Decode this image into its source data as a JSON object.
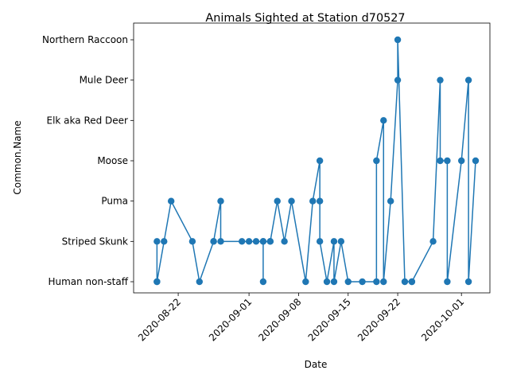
{
  "chart_data": {
    "type": "line",
    "title": "Animals Sighted at Station d70527",
    "xlabel": "Date",
    "ylabel": "Common.Name",
    "categories": [
      "Human non-staff",
      "Striped Skunk",
      "Puma",
      "Moose",
      "Elk aka Red Deer",
      "Mule Deer",
      "Northern Raccoon"
    ],
    "xticks": [
      "2020-08-22",
      "2020-09-01",
      "2020-09-08",
      "2020-09-15",
      "2020-09-22",
      "2020-10-01"
    ],
    "xlim": [
      "2020-08-16",
      "2020-10-03"
    ],
    "grid": false,
    "legend": "none",
    "color": "#1f77b4",
    "series": [
      {
        "x": [
          "2020-08-19",
          "2020-08-19",
          "2020-08-19",
          "2020-08-20",
          "2020-08-21",
          "2020-08-24",
          "2020-08-25",
          "2020-08-27",
          "2020-08-27",
          "2020-08-28",
          "2020-08-28",
          "2020-08-31",
          "2020-09-01",
          "2020-09-02",
          "2020-09-03",
          "2020-09-03",
          "2020-09-03",
          "2020-09-04",
          "2020-09-04",
          "2020-09-05",
          "2020-09-06",
          "2020-09-07",
          "2020-09-09",
          "2020-09-10",
          "2020-09-11",
          "2020-09-11",
          "2020-09-11",
          "2020-09-12",
          "2020-09-13",
          "2020-09-13",
          "2020-09-14",
          "2020-09-15",
          "2020-09-17",
          "2020-09-19",
          "2020-09-19",
          "2020-09-20",
          "2020-09-20",
          "2020-09-21",
          "2020-09-22",
          "2020-09-22",
          "2020-09-23",
          "2020-09-24",
          "2020-09-24",
          "2020-09-27",
          "2020-09-28",
          "2020-09-28",
          "2020-09-29",
          "2020-09-29",
          "2020-10-01",
          "2020-10-02",
          "2020-10-02",
          "2020-10-03"
        ],
        "y": [
          "Striped Skunk",
          "Human non-staff",
          "Human non-staff",
          "Striped Skunk",
          "Puma",
          "Striped Skunk",
          "Human non-staff",
          "Striped Skunk",
          "Striped Skunk",
          "Puma",
          "Striped Skunk",
          "Striped Skunk",
          "Striped Skunk",
          "Striped Skunk",
          "Striped Skunk",
          "Human non-staff",
          "Striped Skunk",
          "Striped Skunk",
          "Striped Skunk",
          "Puma",
          "Striped Skunk",
          "Puma",
          "Human non-staff",
          "Puma",
          "Moose",
          "Puma",
          "Striped Skunk",
          "Human non-staff",
          "Striped Skunk",
          "Human non-staff",
          "Striped Skunk",
          "Human non-staff",
          "Human non-staff",
          "Human non-staff",
          "Moose",
          "Elk aka Red Deer",
          "Human non-staff",
          "Puma",
          "Mule Deer",
          "Northern Raccoon",
          "Human non-staff",
          "Human non-staff",
          "Human non-staff",
          "Striped Skunk",
          "Mule Deer",
          "Moose",
          "Moose",
          "Human non-staff",
          "Moose",
          "Mule Deer",
          "Human non-staff",
          "Moose"
        ]
      }
    ]
  }
}
